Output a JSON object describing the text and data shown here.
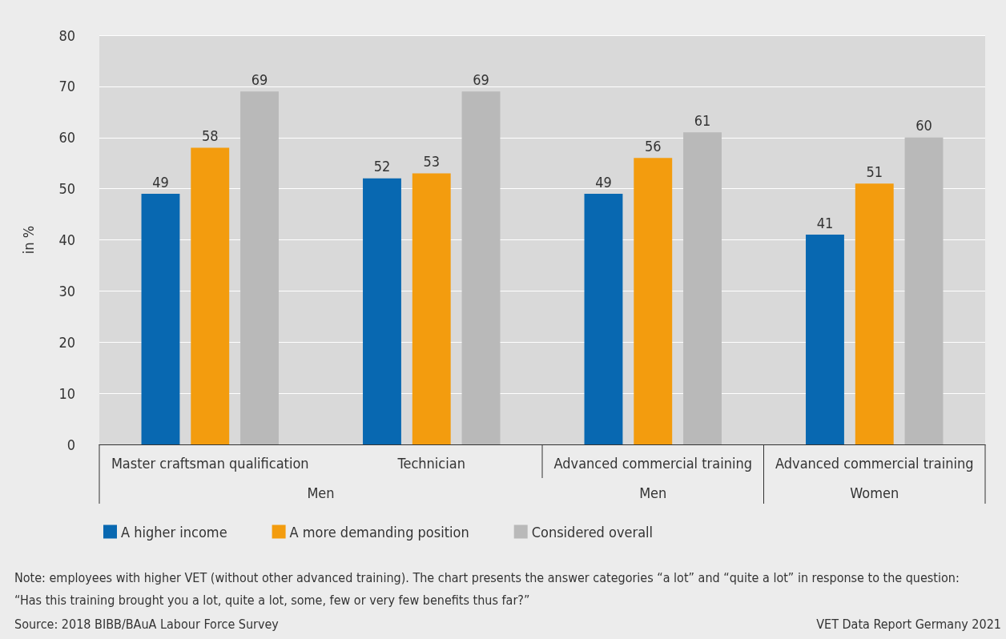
{
  "chart_data": {
    "type": "bar",
    "ylabel": "in %",
    "categories": [
      "Master craftsman qualification",
      "Technician",
      "Advanced commercial training",
      "Advanced commercial training"
    ],
    "series": [
      {
        "name": "A higher income",
        "color": "#0868b1",
        "values": [
          49,
          52,
          49,
          41
        ]
      },
      {
        "name": "A more demanding position",
        "color": "#f39c0e",
        "values": [
          58,
          53,
          56,
          51
        ]
      },
      {
        "name": "Considered overall",
        "color": "#b9b9b9",
        "values": [
          69,
          69,
          61,
          60
        ]
      }
    ],
    "ylim": [
      0,
      80
    ],
    "yticks": [
      0,
      10,
      20,
      30,
      40,
      50,
      60,
      70,
      80
    ],
    "grid": "y",
    "legend": "bottom left",
    "data_labels": true,
    "annotations": [
      "Men",
      "Men",
      "Women",
      "Note: employees with higher VET (without other advanced training). The chart presents the answer categories “a lot” and “quite a lot” in response to the question:",
      "“Has this training brought you a lot, quite a lot, some, few or very few benefits thus far?”",
      "Source: 2018 BIBB/BAuA Labour Force Survey",
      "VET Data Report Germany 2021"
    ]
  }
}
